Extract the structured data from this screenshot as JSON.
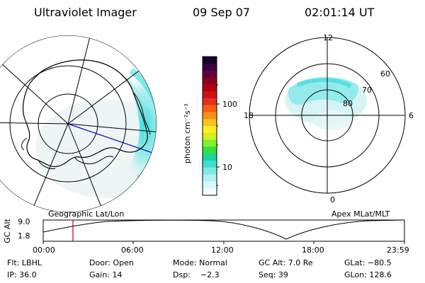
{
  "header": {
    "instrument": "Ultraviolet Imager",
    "date": "09 Sep 07",
    "time": "02:01:14 UT"
  },
  "colorbar": {
    "unit_label": "photon cm⁻²s⁻¹",
    "ticks": [
      "100",
      "10"
    ],
    "colors": [
      "#1a0030",
      "#3a0040",
      "#600040",
      "#8a0020",
      "#b00010",
      "#d01010",
      "#e03020",
      "#f06010",
      "#f59010",
      "#f8c020",
      "#f8f020",
      "#d0f020",
      "#80f030",
      "#30e040",
      "#20d0a0",
      "#40e0d0",
      "#80e8e0",
      "#b0f0f0",
      "#d8f8f8",
      "#f0ffff"
    ]
  },
  "left_map": {
    "label": "Geographic Lat/Lon"
  },
  "right_map": {
    "label": "Apex MLat/MLT",
    "mlt_labels": {
      "top": "12",
      "left": "18",
      "right": "6",
      "bottom": "0"
    },
    "lat_labels": [
      "60",
      "70",
      "80"
    ]
  },
  "timeline": {
    "axis_label": "GC Alt",
    "y_ticks": [
      "9.0",
      "1.8"
    ],
    "x_ticks": [
      "00:00",
      "06:00",
      "12:00",
      "18:00",
      "23:59"
    ],
    "current_time_color": "#c00000"
  },
  "info": {
    "flt": "Flt: LBHL",
    "door": "Door: Open",
    "mode": "Mode: Normal",
    "gc_alt": "GC Alt: 7.0 Re",
    "glat": "GLat: −80.5",
    "ip": "IP: 36.0",
    "gain": "Gain: 14",
    "dsp": "Dsp:    −2.3",
    "seq": "Seq: 39",
    "glon": "GLon: 128.6"
  }
}
